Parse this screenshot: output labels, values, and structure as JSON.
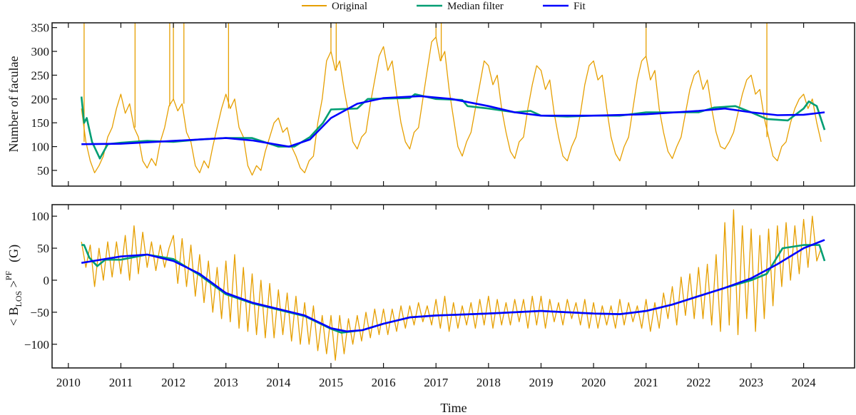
{
  "chart_data": [
    {
      "type": "line",
      "panel": "top",
      "title": "",
      "xlabel": "",
      "ylabel": "Number of faculae",
      "xlim": [
        2009.69,
        2024.97
      ],
      "ylim": [
        17,
        360
      ],
      "yticks": [
        50,
        100,
        150,
        200,
        250,
        300,
        350
      ],
      "xticks": [
        2010,
        2011,
        2012,
        2013,
        2014,
        2015,
        2016,
        2017,
        2018,
        2019,
        2020,
        2021,
        2022,
        2023,
        2024
      ],
      "series": [
        {
          "name": "Original",
          "color": "#E69F00",
          "x_start": 2010.25,
          "x_step": 0.083333,
          "values": [
            180,
            110,
            70,
            45,
            60,
            80,
            120,
            140,
            180,
            210,
            170,
            190,
            140,
            120,
            70,
            55,
            75,
            60,
            110,
            140,
            185,
            200,
            175,
            190,
            130,
            110,
            60,
            45,
            70,
            55,
            100,
            140,
            180,
            210,
            180,
            200,
            140,
            120,
            60,
            40,
            60,
            50,
            90,
            120,
            150,
            160,
            130,
            140,
            100,
            80,
            55,
            45,
            70,
            80,
            150,
            200,
            280,
            300,
            260,
            280,
            220,
            170,
            110,
            95,
            120,
            130,
            190,
            240,
            290,
            310,
            260,
            280,
            210,
            150,
            110,
            95,
            130,
            140,
            200,
            260,
            320,
            330,
            280,
            300,
            220,
            160,
            100,
            80,
            110,
            130,
            180,
            230,
            280,
            270,
            230,
            250,
            180,
            130,
            90,
            75,
            110,
            120,
            180,
            230,
            270,
            260,
            220,
            240,
            170,
            120,
            80,
            70,
            100,
            120,
            170,
            230,
            270,
            280,
            240,
            250,
            180,
            120,
            85,
            70,
            100,
            120,
            180,
            240,
            280,
            290,
            240,
            260,
            180,
            130,
            90,
            75,
            100,
            120,
            170,
            220,
            250,
            260,
            220,
            240,
            180,
            130,
            100,
            95,
            110,
            130,
            170,
            210,
            240,
            250,
            210,
            220,
            160,
            120,
            80,
            70,
            100,
            110,
            150,
            180,
            200,
            210,
            180,
            200,
            150,
            110
          ],
          "spikes_x": [
            2010.3,
            2011.27,
            2011.93,
            2012.0,
            2012.2,
            2013.05,
            2015.0,
            2015.1,
            2017.0,
            2017.1,
            2021.0,
            2023.3
          ],
          "spike_value": 400
        },
        {
          "name": "Median filter",
          "color": "#009E73",
          "x": [
            2010.25,
            2010.3,
            2010.35,
            2010.45,
            2010.6,
            2010.75,
            2011.0,
            2011.5,
            2012.0,
            2012.5,
            2013.0,
            2013.5,
            2014.0,
            2014.3,
            2014.6,
            2014.85,
            2015.0,
            2015.5,
            2015.7,
            2016.5,
            2016.6,
            2017.0,
            2017.5,
            2017.6,
            2018.0,
            2018.5,
            2018.8,
            2019.0,
            2019.5,
            2020.0,
            2020.5,
            2021.0,
            2021.5,
            2022.0,
            2022.3,
            2022.7,
            2023.0,
            2023.3,
            2023.7,
            2024.0,
            2024.1,
            2024.25,
            2024.4
          ],
          "values": [
            205,
            150,
            160,
            110,
            75,
            105,
            108,
            112,
            110,
            115,
            118,
            118,
            100,
            100,
            120,
            150,
            178,
            180,
            200,
            202,
            210,
            200,
            198,
            185,
            180,
            172,
            175,
            165,
            163,
            165,
            165,
            172,
            172,
            172,
            182,
            185,
            172,
            158,
            155,
            180,
            195,
            185,
            135
          ]
        },
        {
          "name": "Fit",
          "color": "#0000FF",
          "x": [
            2010.25,
            2011.0,
            2012.0,
            2013.0,
            2013.5,
            2014.2,
            2014.6,
            2015.0,
            2015.5,
            2016.0,
            2016.7,
            2017.3,
            2018.0,
            2018.5,
            2019.0,
            2020.0,
            2021.0,
            2022.0,
            2022.5,
            2023.0,
            2023.5,
            2024.0,
            2024.4
          ],
          "values": [
            105,
            106,
            112,
            118,
            113,
            100,
            115,
            160,
            190,
            202,
            206,
            200,
            185,
            172,
            165,
            165,
            168,
            175,
            180,
            172,
            166,
            167,
            172
          ]
        }
      ]
    },
    {
      "type": "line",
      "panel": "bottom",
      "title": "",
      "xlabel": "Time",
      "ylabel": {
        "open": "< B",
        "sub": "LOS",
        "close": " >",
        "sup": "PF",
        "unit": "(G)"
      },
      "xlim": [
        2009.69,
        2024.97
      ],
      "ylim": [
        -137,
        118
      ],
      "yticks": [
        -100,
        -50,
        0,
        50,
        100
      ],
      "xticks": [
        2010,
        2011,
        2012,
        2013,
        2014,
        2015,
        2016,
        2017,
        2018,
        2019,
        2020,
        2021,
        2022,
        2023,
        2024
      ],
      "series": [
        {
          "name": "Original",
          "color": "#E69F00",
          "x_start": 2010.25,
          "x_step": 0.083333,
          "values": [
            60,
            20,
            55,
            -10,
            50,
            0,
            60,
            5,
            60,
            10,
            70,
            0,
            85,
            10,
            75,
            20,
            60,
            15,
            55,
            20,
            50,
            70,
            -5,
            65,
            -10,
            55,
            -25,
            40,
            -35,
            30,
            -50,
            20,
            -60,
            30,
            -65,
            40,
            -75,
            20,
            -80,
            10,
            -85,
            0,
            -90,
            -5,
            -90,
            -15,
            -85,
            -20,
            -95,
            -25,
            -100,
            -35,
            -100,
            -40,
            -110,
            -55,
            -115,
            -55,
            -125,
            -55,
            -115,
            -60,
            -100,
            -55,
            -95,
            -50,
            -90,
            -45,
            -85,
            -45,
            -85,
            -45,
            -80,
            -40,
            -75,
            -40,
            -70,
            -35,
            -65,
            -40,
            -70,
            -30,
            -75,
            -25,
            -80,
            -35,
            -75,
            -40,
            -70,
            -35,
            -75,
            -30,
            -70,
            -25,
            -75,
            -30,
            -70,
            -35,
            -70,
            -30,
            -65,
            -30,
            -75,
            -25,
            -70,
            -25,
            -75,
            -30,
            -65,
            -35,
            -70,
            -30,
            -60,
            -35,
            -70,
            -30,
            -75,
            -35,
            -75,
            -40,
            -70,
            -40,
            -75,
            -30,
            -70,
            -35,
            -65,
            -40,
            -75,
            -30,
            -80,
            -35,
            -75,
            -20,
            -60,
            -10,
            -70,
            5,
            -55,
            10,
            -60,
            20,
            -60,
            25,
            -70,
            40,
            -80,
            90,
            -70,
            110,
            -85,
            85,
            -60,
            80,
            -80,
            70,
            -60,
            80,
            -40,
            85,
            -10,
            90,
            0,
            85,
            10,
            95,
            20,
            100,
            30,
            50
          ]
        },
        {
          "name": "Median filter",
          "color": "#009E73",
          "x": [
            2010.25,
            2010.3,
            2010.4,
            2010.55,
            2010.7,
            2011.0,
            2011.5,
            2012.0,
            2012.5,
            2013.0,
            2013.5,
            2014.0,
            2014.5,
            2015.0,
            2015.2,
            2015.6,
            2016.0,
            2016.5,
            2017.0,
            2018.0,
            2019.0,
            2020.0,
            2020.5,
            2021.0,
            2021.5,
            2022.0,
            2022.5,
            2023.0,
            2023.3,
            2023.6,
            2024.0,
            2024.3,
            2024.4
          ],
          "values": [
            55,
            55,
            35,
            22,
            32,
            32,
            40,
            33,
            8,
            -22,
            -36,
            -46,
            -56,
            -76,
            -82,
            -78,
            -68,
            -58,
            -55,
            -52,
            -48,
            -52,
            -53,
            -48,
            -38,
            -25,
            -12,
            0,
            10,
            50,
            55,
            55,
            30
          ]
        },
        {
          "name": "Fit",
          "color": "#0000FF",
          "x": [
            2010.25,
            2011.0,
            2011.5,
            2012.0,
            2012.5,
            2013.0,
            2013.5,
            2014.0,
            2014.5,
            2015.0,
            2015.3,
            2015.6,
            2016.0,
            2016.5,
            2017.0,
            2018.0,
            2019.0,
            2020.0,
            2020.5,
            2021.0,
            2021.5,
            2022.0,
            2022.5,
            2023.0,
            2023.5,
            2024.0,
            2024.4
          ],
          "values": [
            27,
            37,
            40,
            30,
            10,
            -20,
            -35,
            -45,
            -55,
            -75,
            -80,
            -78,
            -68,
            -58,
            -55,
            -52,
            -48,
            -52,
            -53,
            -48,
            -38,
            -25,
            -12,
            3,
            25,
            50,
            63
          ]
        }
      ]
    }
  ],
  "legend": {
    "placement": "top-center",
    "items": [
      "Original",
      "Median filter",
      "Fit"
    ]
  }
}
